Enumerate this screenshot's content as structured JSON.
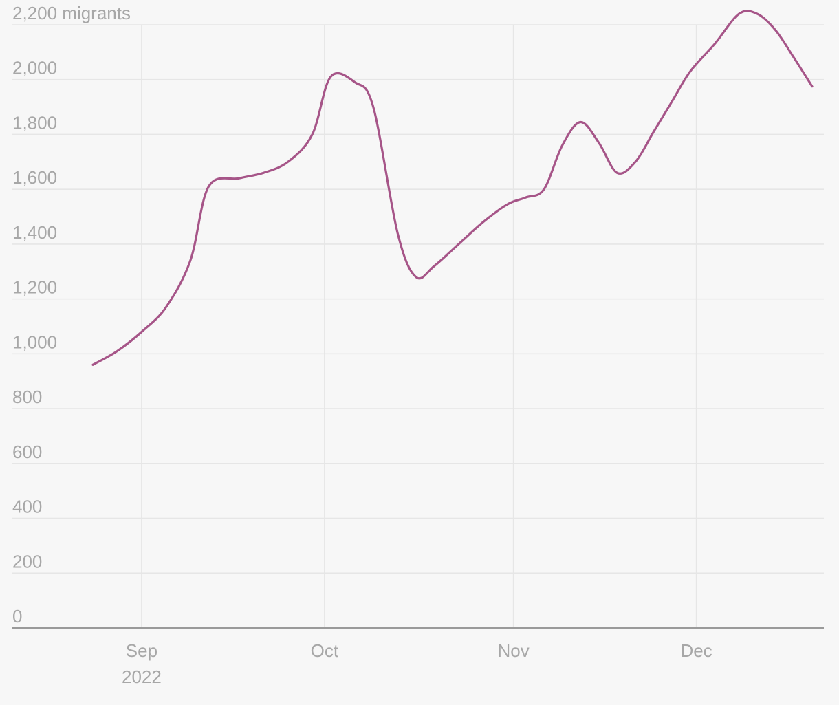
{
  "chart_data": {
    "type": "line",
    "title": "",
    "xlabel": "",
    "ylabel": "",
    "y_unit_label": "migrants",
    "ylim": [
      0,
      2200
    ],
    "xlim": [
      "2022-08-24",
      "2022-12-20"
    ],
    "y_ticks": [
      0,
      200,
      400,
      600,
      800,
      1000,
      1200,
      1400,
      1600,
      1800,
      2000,
      2200
    ],
    "y_tick_labels": [
      "0",
      "200",
      "400",
      "600",
      "800",
      "1,000",
      "1,200",
      "1,400",
      "1,600",
      "1,800",
      "2,000",
      "2,200 migrants"
    ],
    "x_ticks": [
      {
        "date": "2022-09-01",
        "label": "Sep",
        "sublabel": "2022"
      },
      {
        "date": "2022-10-01",
        "label": "Oct",
        "sublabel": ""
      },
      {
        "date": "2022-11-01",
        "label": "Nov",
        "sublabel": ""
      },
      {
        "date": "2022-12-01",
        "label": "Dec",
        "sublabel": ""
      }
    ],
    "grid": true,
    "line_color": "#a65588",
    "series": [
      {
        "x": [
          "2022-08-24",
          "2022-08-28",
          "2022-09-01",
          "2022-09-05",
          "2022-09-09",
          "2022-09-12",
          "2022-09-17",
          "2022-09-21",
          "2022-09-25",
          "2022-09-29",
          "2022-10-02",
          "2022-10-06",
          "2022-10-09",
          "2022-10-13",
          "2022-10-16",
          "2022-10-19",
          "2022-10-23",
          "2022-10-27",
          "2022-10-31",
          "2022-11-03",
          "2022-11-06",
          "2022-11-09",
          "2022-11-12",
          "2022-11-15",
          "2022-11-18",
          "2022-11-21",
          "2022-11-24",
          "2022-11-27",
          "2022-11-30",
          "2022-12-04",
          "2022-12-08",
          "2022-12-11",
          "2022-12-14",
          "2022-12-17",
          "2022-12-20"
        ],
        "y": [
          960,
          1010,
          1080,
          1170,
          1340,
          1610,
          1640,
          1660,
          1700,
          1800,
          2010,
          1990,
          1900,
          1440,
          1280,
          1320,
          1400,
          1480,
          1545,
          1570,
          1600,
          1760,
          1845,
          1770,
          1660,
          1700,
          1810,
          1920,
          2030,
          2130,
          2240,
          2240,
          2180,
          2080,
          1975
        ]
      }
    ]
  }
}
